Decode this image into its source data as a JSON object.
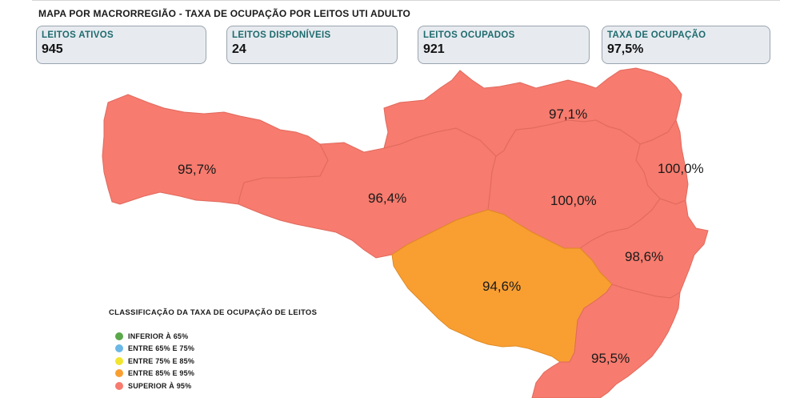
{
  "title": "MAPA POR MACRORREGIÃO - TAXA DE OCUPAÇÃO POR LEITOS UTI ADULTO",
  "kpis": [
    {
      "label": "LEITOS ATIVOS",
      "value": "945"
    },
    {
      "label": "LEITOS DISPONÍVEIS",
      "value": "24"
    },
    {
      "label": "LEITOS OCUPADOS",
      "value": "921"
    },
    {
      "label": "TAXA DE OCUPAÇÃO",
      "value": "97,5%"
    }
  ],
  "map": {
    "colors": {
      "superior_95": "#f77b6e",
      "entre_85_95": "#f99f32"
    },
    "regions": [
      {
        "label": "95,7%",
        "class": "superior_95"
      },
      {
        "label": "96,4%",
        "class": "superior_95"
      },
      {
        "label": "97,1%",
        "class": "superior_95"
      },
      {
        "label": "100,0%",
        "class": "superior_95"
      },
      {
        "label": "100,0%",
        "class": "superior_95"
      },
      {
        "label": "98,6%",
        "class": "superior_95"
      },
      {
        "label": "94,6%",
        "class": "entre_85_95"
      },
      {
        "label": "95,5%",
        "class": "superior_95"
      }
    ]
  },
  "legend": {
    "title": "CLASSIFICAÇÃO DA TAXA DE OCUPAÇÃO DE LEITOS",
    "items": [
      {
        "label": "INFERIOR À 65%",
        "color": "#5aa84b"
      },
      {
        "label": "ENTRE 65% E 75%",
        "color": "#6bb8e6"
      },
      {
        "label": "ENTRE 75% E 85%",
        "color": "#f2e530"
      },
      {
        "label": "ENTRE 85% E 95%",
        "color": "#f99f32"
      },
      {
        "label": "SUPERIOR À 95%",
        "color": "#f77b6e"
      }
    ]
  }
}
